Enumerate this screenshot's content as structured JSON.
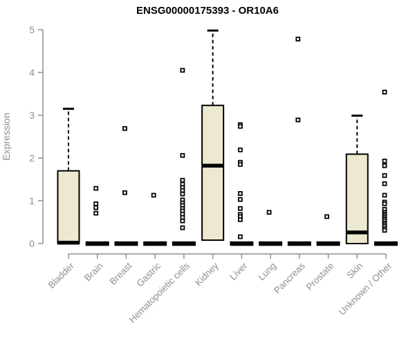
{
  "page": {
    "background": "#ffffff"
  },
  "chart_data": {
    "type": "boxplot",
    "title": "ENSG00000175393 - OR10A6",
    "ylabel": "Expression",
    "xlabel": "",
    "ylim": [
      0,
      5
    ],
    "yticks": [
      0,
      1,
      2,
      3,
      4,
      5
    ],
    "grid": false,
    "legend": "none",
    "colors": {
      "box_fill": "#EDE8D0",
      "box_border": "#000000",
      "median": "#000000",
      "whisker": "#000000",
      "outlier": "#000000",
      "axis": "#8f8f8f",
      "tick_label": "#8f8f8f",
      "title": "#000000"
    },
    "categories": [
      "Bladder",
      "Brain",
      "Breast",
      "Gastric",
      "Hematopoietic cells",
      "Kidney",
      "Liver",
      "Lung",
      "Pancreas",
      "Prostate",
      "Skin",
      "Unknown / Other"
    ],
    "series": [
      {
        "name": "Bladder",
        "q1": 0,
        "median": 0.02,
        "q3": 1.7,
        "whisker_low": 0,
        "whisker_high": 3.15,
        "outliers": []
      },
      {
        "name": "Brain",
        "q1": 0,
        "median": 0,
        "q3": 0,
        "whisker_low": 0,
        "whisker_high": 0,
        "outliers": [
          1.29,
          0.93,
          0.84,
          0.71
        ]
      },
      {
        "name": "Breast",
        "q1": 0,
        "median": 0,
        "q3": 0,
        "whisker_low": 0,
        "whisker_high": 0,
        "outliers": [
          2.69,
          1.19
        ]
      },
      {
        "name": "Gastric",
        "q1": 0,
        "median": 0,
        "q3": 0,
        "whisker_low": 0,
        "whisker_high": 0,
        "outliers": [
          1.13
        ]
      },
      {
        "name": "Hematopoietic cells",
        "q1": 0,
        "median": 0,
        "q3": 0,
        "whisker_low": 0,
        "whisker_high": 0,
        "outliers": [
          4.05,
          2.06,
          1.48,
          1.39,
          1.31,
          1.24,
          1.16,
          1.02,
          0.95,
          0.89,
          0.82,
          0.76,
          0.69,
          0.61,
          0.53,
          0.37
        ]
      },
      {
        "name": "Kidney",
        "q1": 0.08,
        "median": 1.82,
        "q3": 3.23,
        "whisker_low": 0.08,
        "whisker_high": 4.98,
        "outliers": []
      },
      {
        "name": "Liver",
        "q1": 0,
        "median": 0,
        "q3": 0,
        "whisker_low": 0,
        "whisker_high": 0,
        "outliers": [
          2.78,
          2.74,
          2.19,
          1.9,
          1.85,
          1.17,
          1.03,
          0.82,
          0.68,
          0.63,
          0.56,
          0.16
        ]
      },
      {
        "name": "Lung",
        "q1": 0,
        "median": 0,
        "q3": 0,
        "whisker_low": 0,
        "whisker_high": 0,
        "outliers": [
          0.73
        ]
      },
      {
        "name": "Pancreas",
        "q1": 0,
        "median": 0,
        "q3": 0,
        "whisker_low": 0,
        "whisker_high": 0,
        "outliers": [
          4.78,
          2.89
        ]
      },
      {
        "name": "Prostate",
        "q1": 0,
        "median": 0,
        "q3": 0,
        "whisker_low": 0,
        "whisker_high": 0,
        "outliers": [
          0.63
        ]
      },
      {
        "name": "Skin",
        "q1": 0,
        "median": 0.26,
        "q3": 2.09,
        "whisker_low": 0,
        "whisker_high": 2.99,
        "outliers": []
      },
      {
        "name": "Unknown / Other",
        "q1": 0,
        "median": 0,
        "q3": 0,
        "whisker_low": 0,
        "whisker_high": 0,
        "outliers": [
          3.54,
          1.93,
          1.82,
          1.59,
          1.4,
          1.13,
          0.97,
          0.93,
          0.8,
          0.73,
          0.69,
          0.65,
          0.61,
          0.57,
          0.53,
          0.48,
          0.44,
          0.4,
          0.35,
          0.31
        ]
      }
    ]
  }
}
